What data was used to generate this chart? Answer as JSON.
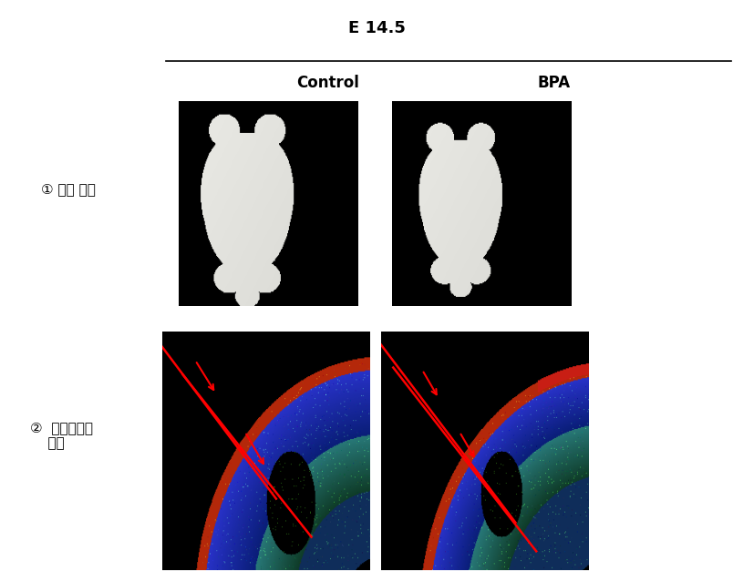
{
  "title": "E 14.5",
  "col1_label": "Control",
  "col2_label": "BPA",
  "row1_label": "① 뇌의 크기",
  "row2_label_line1": "②  대뇌피질의",
  "row2_label_line2": "    두께",
  "background_color": "#ffffff",
  "title_fontsize": 13,
  "label_fontsize": 11,
  "col_label_fontsize": 12,
  "fig_width": 8.27,
  "fig_height": 6.39
}
